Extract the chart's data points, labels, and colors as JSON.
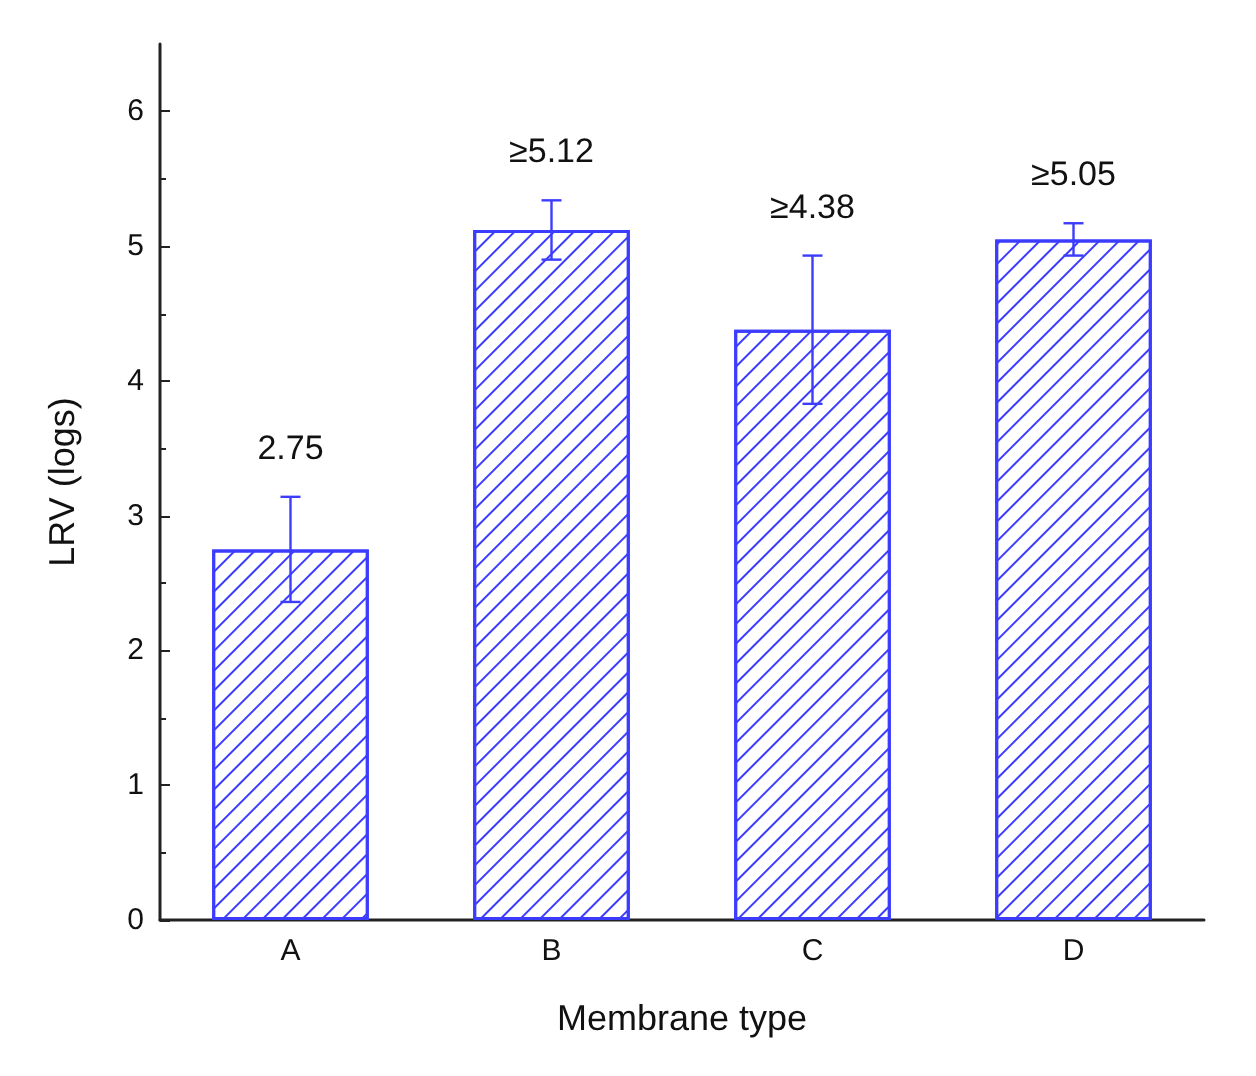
{
  "chart_data": {
    "type": "bar",
    "xlabel": "Membrane type",
    "ylabel": "LRV (logs)",
    "categories": [
      "A",
      "B",
      "C",
      "D"
    ],
    "values": [
      2.75,
      5.12,
      4.38,
      5.05
    ],
    "errors": [
      0.39,
      0.22,
      0.55,
      0.12
    ],
    "value_labels": [
      "2.75",
      "≥5.12",
      "≥4.38",
      "≥5.05"
    ],
    "color": "#3c3cff",
    "ylim": [
      0,
      6.5
    ],
    "yticks": [
      0,
      1,
      2,
      3,
      4,
      5,
      6
    ],
    "grid": false
  }
}
